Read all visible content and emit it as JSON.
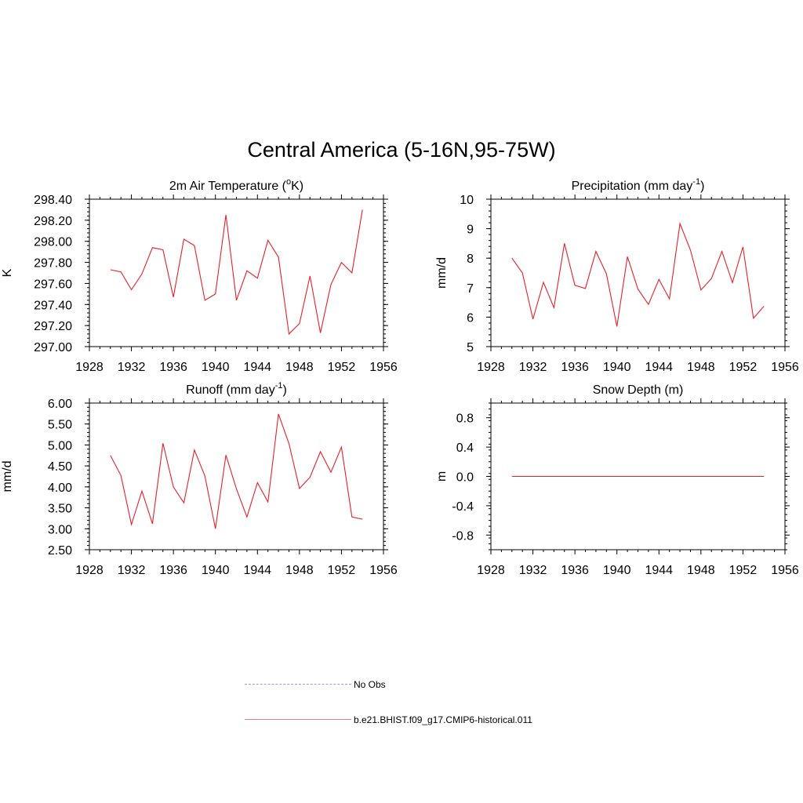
{
  "figure": {
    "title": "Central America (5-16N,95-75W)"
  },
  "colors": {
    "model_line": "#e8202a",
    "obs_line": "#9a9ae8",
    "axis": "#000000"
  },
  "legend": {
    "items": [
      {
        "label": "No Obs",
        "style": "dashed",
        "color": "#9a9ae8"
      },
      {
        "label": "b.e21.BHIST.f09_g17.CMIP6-historical.011",
        "style": "solid",
        "color": "#f07a80"
      }
    ]
  },
  "chart_data": [
    {
      "type": "line",
      "title": "2m Air Temperature (",
      "title_sup": "o",
      "title_after": "K)",
      "ylabel": "K",
      "xlim": [
        1928,
        1956
      ],
      "ylim": [
        297.0,
        298.4
      ],
      "xticks": [
        1928,
        1932,
        1936,
        1940,
        1944,
        1948,
        1952,
        1956
      ],
      "yticks": [
        297.0,
        297.2,
        297.4,
        297.6,
        297.8,
        298.0,
        298.2,
        298.4
      ],
      "ytick_labels": [
        "297.00",
        "297.20",
        "297.40",
        "297.60",
        "297.80",
        "298.00",
        "298.20",
        "298.40"
      ],
      "series": [
        {
          "x": [
            1930,
            1931,
            1932,
            1933,
            1934,
            1935,
            1936,
            1937,
            1938,
            1939,
            1940,
            1941,
            1942,
            1943,
            1944,
            1945,
            1946,
            1947,
            1948,
            1949,
            1950,
            1951,
            1952,
            1953,
            1954
          ],
          "values": [
            297.73,
            297.71,
            297.54,
            297.69,
            297.94,
            297.92,
            297.47,
            298.02,
            297.96,
            297.44,
            297.5,
            298.25,
            297.44,
            297.72,
            297.65,
            298.01,
            297.85,
            297.12,
            297.22,
            297.67,
            297.13,
            297.59,
            297.8,
            297.7,
            298.3
          ]
        }
      ]
    },
    {
      "type": "line",
      "title": "Precipitation (mm day",
      "title_sup": "-1",
      "title_after": ")",
      "ylabel": "mm/d",
      "xlim": [
        1928,
        1956
      ],
      "ylim": [
        5,
        10
      ],
      "xticks": [
        1928,
        1932,
        1936,
        1940,
        1944,
        1948,
        1952,
        1956
      ],
      "yticks": [
        5,
        6,
        7,
        8,
        9,
        10
      ],
      "ytick_labels": [
        "5",
        "6",
        "7",
        "8",
        "9",
        "10"
      ],
      "series": [
        {
          "x": [
            1930,
            1931,
            1932,
            1933,
            1934,
            1935,
            1936,
            1937,
            1938,
            1939,
            1940,
            1941,
            1942,
            1943,
            1944,
            1945,
            1946,
            1947,
            1948,
            1949,
            1950,
            1951,
            1952,
            1953,
            1954
          ],
          "values": [
            8.0,
            7.5,
            5.93,
            7.18,
            6.32,
            8.5,
            7.08,
            6.97,
            8.23,
            7.47,
            5.68,
            8.05,
            6.95,
            6.43,
            7.28,
            6.62,
            9.17,
            8.27,
            6.92,
            7.31,
            8.23,
            7.17,
            8.38,
            5.96,
            6.37
          ]
        }
      ]
    },
    {
      "type": "line",
      "title": "Runoff (mm day",
      "title_sup": "-1",
      "title_after": ")",
      "ylabel": "mm/d",
      "xlim": [
        1928,
        1956
      ],
      "ylim": [
        2.5,
        6.0
      ],
      "xticks": [
        1928,
        1932,
        1936,
        1940,
        1944,
        1948,
        1952,
        1956
      ],
      "yticks": [
        2.5,
        3.0,
        3.5,
        4.0,
        4.5,
        5.0,
        5.5,
        6.0
      ],
      "ytick_labels": [
        "2.50",
        "3.00",
        "3.50",
        "4.00",
        "4.50",
        "5.00",
        "5.50",
        "6.00"
      ],
      "series": [
        {
          "x": [
            1930,
            1931,
            1932,
            1933,
            1934,
            1935,
            1936,
            1937,
            1938,
            1939,
            1940,
            1941,
            1942,
            1943,
            1944,
            1945,
            1946,
            1947,
            1948,
            1949,
            1950,
            1951,
            1952,
            1953,
            1954
          ],
          "values": [
            4.75,
            4.27,
            3.1,
            3.9,
            3.12,
            5.04,
            4.0,
            3.62,
            4.88,
            4.26,
            3.0,
            4.76,
            3.95,
            3.28,
            4.1,
            3.64,
            5.74,
            5.03,
            3.96,
            4.23,
            4.84,
            4.35,
            4.95,
            3.28,
            3.23
          ]
        }
      ]
    },
    {
      "type": "line",
      "title": "Snow Depth (m)",
      "title_sup": "",
      "title_after": "",
      "ylabel": "m",
      "xlim": [
        1928,
        1956
      ],
      "ylim": [
        -1.0,
        1.0
      ],
      "xticks": [
        1928,
        1932,
        1936,
        1940,
        1944,
        1948,
        1952,
        1956
      ],
      "yticks": [
        -0.8,
        -0.4,
        0.0,
        0.4,
        0.8
      ],
      "ytick_labels": [
        "-0.8",
        "-0.4",
        "0.0",
        "0.4",
        "0.8"
      ],
      "series": [
        {
          "x": [
            1930,
            1954
          ],
          "values": [
            0.0,
            0.0
          ]
        }
      ]
    }
  ]
}
